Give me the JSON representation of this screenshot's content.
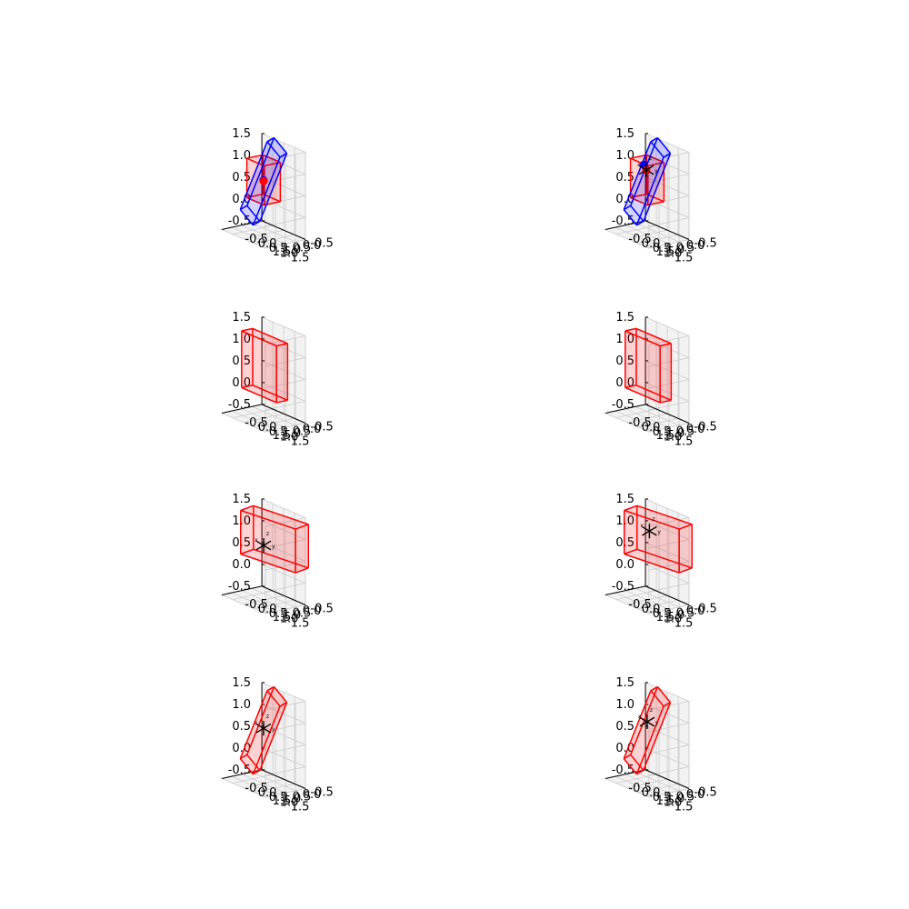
{
  "figure": {
    "rows": 4,
    "cols": 2,
    "tick_labels": [
      "-0.5",
      "0.0",
      "0.5",
      "1.0",
      "1.5"
    ],
    "tick_values": [
      -0.5,
      0.0,
      0.5,
      1.0,
      1.5
    ],
    "colors": {
      "pane": "#f2f2f2",
      "grid": "#cccccc",
      "axis": "#000000",
      "red_edge": "#ff0000",
      "red_fill": "#ff0000",
      "blue_edge": "#0000ff",
      "blue_fill": "#0000ff",
      "frame_marker": "#000000"
    },
    "frame_axis_labels": [
      "x",
      "y",
      "z"
    ]
  },
  "chart_data": [
    {
      "type": "3d-wireframe",
      "panel": "row1-col1",
      "axes": {
        "xlim": [
          -0.5,
          1.5
        ],
        "ylim": [
          -0.5,
          1.5
        ],
        "zlim": [
          -0.5,
          1.5
        ],
        "grid": true
      },
      "objects": [
        {
          "kind": "box",
          "color": "red",
          "center": [
            0.5,
            0.5,
            0.75
          ],
          "size": [
            0.8,
            0.8,
            0.9
          ],
          "rotation_deg": [
            0,
            0,
            0
          ]
        },
        {
          "kind": "box",
          "color": "blue",
          "center": [
            0.45,
            0.45,
            0.7
          ],
          "size": [
            0.55,
            0.55,
            2.0
          ],
          "rotation_deg": [
            -30,
            0,
            18
          ]
        },
        {
          "kind": "point",
          "color": "blue",
          "position": [
            0.42,
            0.42,
            0.72
          ]
        },
        {
          "kind": "point",
          "color": "red",
          "position": [
            0.48,
            0.48,
            0.72
          ]
        }
      ]
    },
    {
      "type": "3d-wireframe",
      "panel": "row1-col2",
      "axes": {
        "xlim": [
          -0.5,
          1.5
        ],
        "ylim": [
          -0.5,
          1.5
        ],
        "zlim": [
          -0.5,
          1.5
        ],
        "grid": true
      },
      "objects": [
        {
          "kind": "box",
          "color": "red",
          "center": [
            0.5,
            0.5,
            0.75
          ],
          "size": [
            0.8,
            0.8,
            0.9
          ],
          "rotation_deg": [
            0,
            0,
            0
          ]
        },
        {
          "kind": "box",
          "color": "blue",
          "center": [
            0.45,
            0.45,
            0.7
          ],
          "size": [
            0.55,
            0.55,
            2.0
          ],
          "rotation_deg": [
            -30,
            0,
            18
          ]
        },
        {
          "kind": "point",
          "color": "blue",
          "position": [
            0.45,
            0.3,
            1.05
          ]
        },
        {
          "kind": "point",
          "color": "red",
          "position": [
            0.6,
            0.55,
            1.0
          ]
        },
        {
          "kind": "frame",
          "position": [
            0.6,
            0.55,
            1.0
          ]
        }
      ]
    },
    {
      "type": "3d-wireframe",
      "panel": "row2-col1",
      "axes": {
        "xlim": [
          -0.5,
          1.5
        ],
        "ylim": [
          -0.5,
          1.5
        ],
        "zlim": [
          -0.5,
          1.5
        ],
        "grid": true
      },
      "objects": [
        {
          "kind": "box",
          "color": "red",
          "center": [
            0.45,
            0.5,
            0.7
          ],
          "size": [
            0.55,
            1.6,
            1.3
          ],
          "rotation_deg": [
            0,
            0,
            0
          ]
        }
      ]
    },
    {
      "type": "3d-wireframe",
      "panel": "row2-col2",
      "axes": {
        "xlim": [
          -0.5,
          1.5
        ],
        "ylim": [
          -0.5,
          1.5
        ],
        "zlim": [
          -0.5,
          1.5
        ],
        "grid": true
      },
      "objects": [
        {
          "kind": "box",
          "color": "red",
          "center": [
            0.45,
            0.5,
            0.7
          ],
          "size": [
            0.55,
            1.6,
            1.3
          ],
          "rotation_deg": [
            0,
            0,
            0
          ]
        }
      ]
    },
    {
      "type": "3d-wireframe",
      "panel": "row3-col1",
      "axes": {
        "xlim": [
          -0.5,
          1.5
        ],
        "ylim": [
          -0.5,
          1.5
        ],
        "zlim": [
          -0.5,
          1.5
        ],
        "grid": true
      },
      "objects": [
        {
          "kind": "box",
          "color": "red",
          "center": [
            0.5,
            1.0,
            1.0
          ],
          "size": [
            0.8,
            2.2,
            1.0
          ],
          "rotation_deg": [
            0,
            0,
            10
          ]
        },
        {
          "kind": "frame",
          "position": [
            0.5,
            0.5,
            0.75
          ]
        }
      ]
    },
    {
      "type": "3d-wireframe",
      "panel": "row3-col2",
      "axes": {
        "xlim": [
          -0.5,
          1.5
        ],
        "ylim": [
          -0.5,
          1.5
        ],
        "zlim": [
          -0.5,
          1.5
        ],
        "grid": true
      },
      "objects": [
        {
          "kind": "box",
          "color": "red",
          "center": [
            0.5,
            1.0,
            1.0
          ],
          "size": [
            0.8,
            2.2,
            1.0
          ],
          "rotation_deg": [
            0,
            0,
            10
          ]
        },
        {
          "kind": "frame",
          "position": [
            0.5,
            0.6,
            1.1
          ]
        }
      ]
    },
    {
      "type": "3d-wireframe",
      "panel": "row4-col1",
      "axes": {
        "xlim": [
          -0.5,
          1.5
        ],
        "ylim": [
          -0.5,
          1.5
        ],
        "zlim": [
          -0.5,
          1.5
        ],
        "grid": true
      },
      "objects": [
        {
          "kind": "box",
          "color": "red",
          "center": [
            0.45,
            0.45,
            0.7
          ],
          "size": [
            0.55,
            0.55,
            2.0
          ],
          "rotation_deg": [
            -30,
            0,
            18
          ]
        },
        {
          "kind": "frame",
          "position": [
            0.45,
            0.45,
            0.75
          ]
        }
      ]
    },
    {
      "type": "3d-wireframe",
      "panel": "row4-col2",
      "axes": {
        "xlim": [
          -0.5,
          1.5
        ],
        "ylim": [
          -0.5,
          1.5
        ],
        "zlim": [
          -0.5,
          1.5
        ],
        "grid": true
      },
      "objects": [
        {
          "kind": "box",
          "color": "red",
          "center": [
            0.45,
            0.45,
            0.7
          ],
          "size": [
            0.55,
            0.55,
            2.0
          ],
          "rotation_deg": [
            -30,
            0,
            18
          ]
        },
        {
          "kind": "frame",
          "position": [
            0.45,
            0.45,
            0.9
          ]
        }
      ]
    }
  ]
}
